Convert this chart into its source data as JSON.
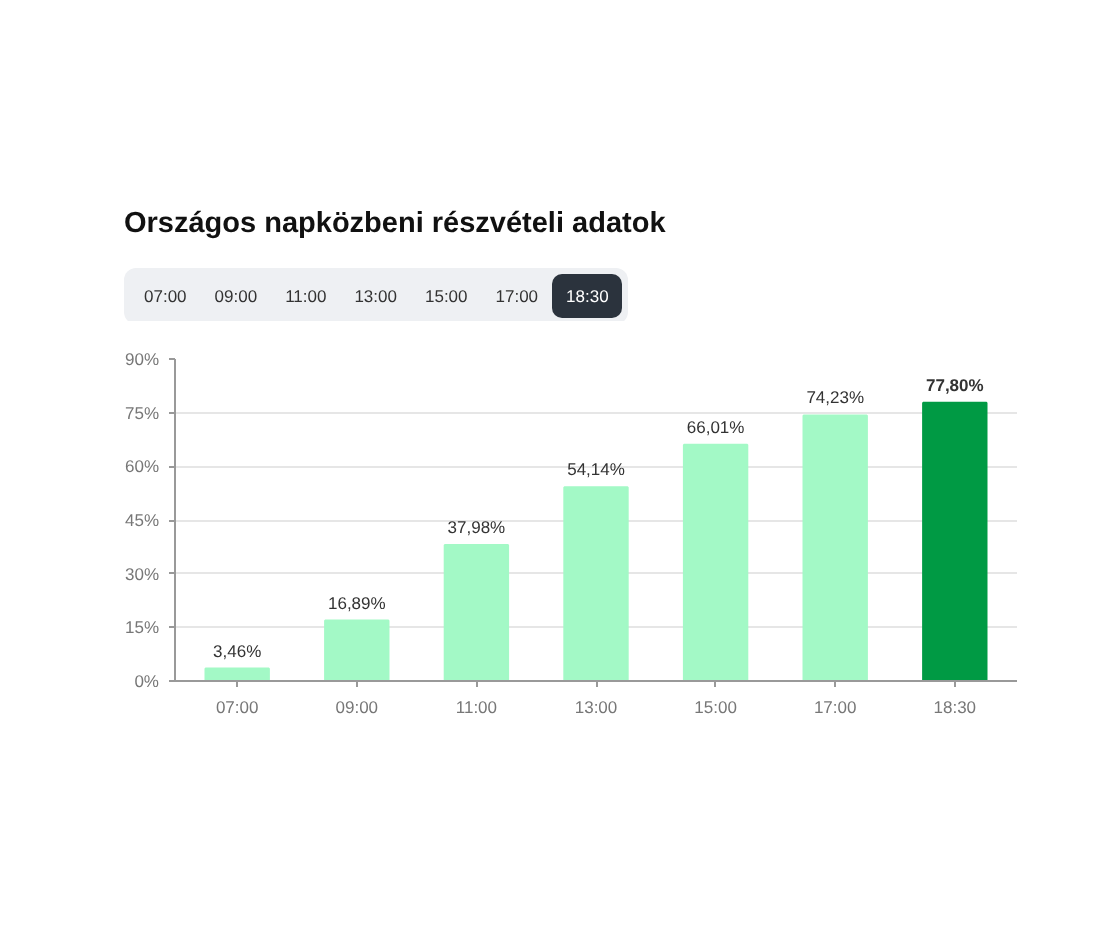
{
  "chart_data": {
    "type": "bar",
    "title": "Országos napközbeni részvételi adatok",
    "annotations": [
      "07:00",
      "09:00",
      "11:00",
      "13:00",
      "15:00",
      "17:00",
      "18:30"
    ],
    "categories": [
      "07:00",
      "09:00",
      "11:00",
      "13:00",
      "15:00",
      "17:00",
      "18:30"
    ],
    "values": [
      3.46,
      16.89,
      37.98,
      54.14,
      66.01,
      74.23,
      77.8
    ],
    "colors": [
      "#a3f9c6",
      "#a3f9c6",
      "#a3f9c6",
      "#a3f9c6",
      "#a3f9c6",
      "#a3f9c6",
      "#009a44"
    ],
    "value_labels": [
      "3,46%",
      "16,89%",
      "37,98%",
      "54,14%",
      "66,01%",
      "74,23%",
      "77,80%"
    ],
    "ylim": [
      0,
      90
    ],
    "yticks": [
      {
        "value": 0,
        "label": "0%"
      },
      {
        "value": 15,
        "label": "15%"
      },
      {
        "value": 30,
        "label": "30%"
      },
      {
        "value": 45,
        "label": "45%"
      },
      {
        "value": 60,
        "label": "60%"
      },
      {
        "value": 75,
        "label": "75%"
      },
      {
        "value": 90,
        "label": "90%"
      }
    ],
    "grid": "y"
  }
}
